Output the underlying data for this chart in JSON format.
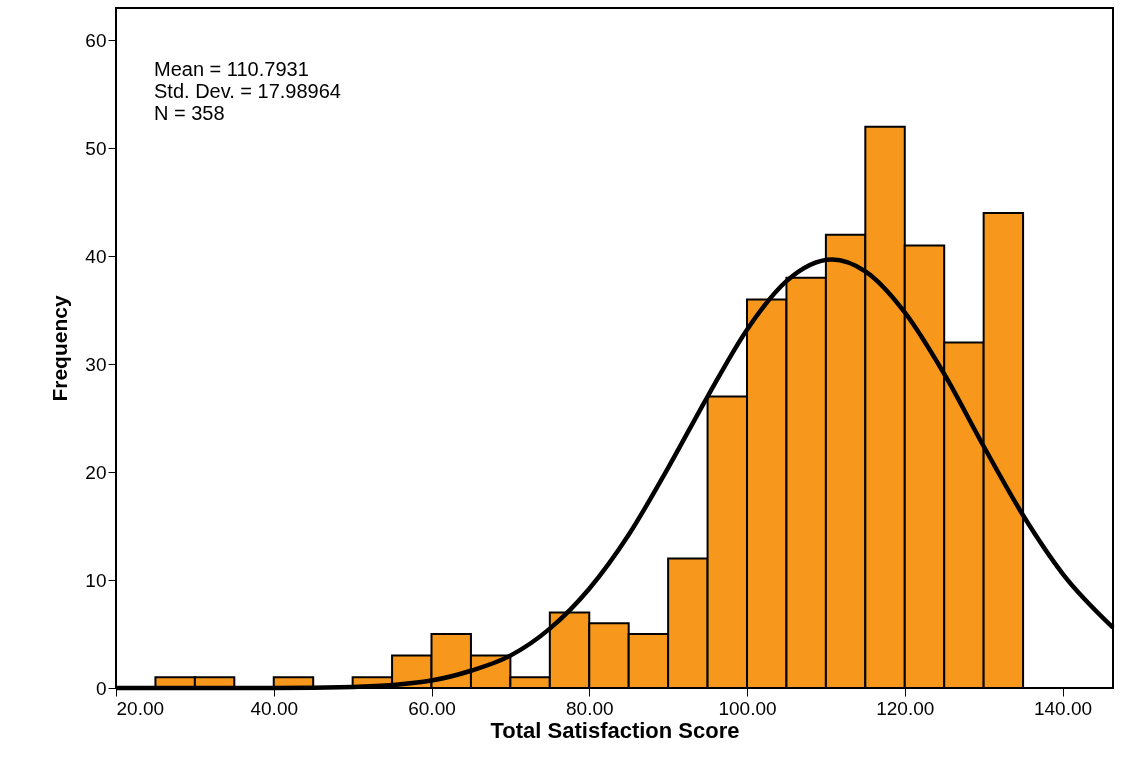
{
  "chart_data": {
    "type": "histogram",
    "xlabel": "Total Satisfaction Score",
    "ylabel": "Frequency",
    "bins": [
      25,
      30,
      35,
      40,
      45,
      50,
      55,
      60,
      65,
      70,
      75,
      80,
      85,
      90,
      95,
      100,
      105,
      110,
      115,
      120,
      125,
      130,
      135
    ],
    "values": [
      1,
      1,
      0,
      1,
      0,
      1,
      3,
      5,
      3,
      1,
      7,
      6,
      5,
      12,
      27,
      36,
      38,
      42,
      52,
      41,
      32,
      44
    ],
    "color": "#f7981d",
    "series": [
      {
        "type": "line",
        "color": "#000000",
        "x": [
          20,
          30,
          40,
          50,
          60,
          65,
          70,
          75,
          80,
          85,
          90,
          95,
          100,
          105,
          110.79,
          115,
          120,
          125,
          130,
          135,
          140,
          146.4
        ],
        "values": [
          0,
          0,
          0,
          0.1,
          0.7,
          1.6,
          3,
          5.5,
          9.2,
          14.2,
          20.4,
          27.0,
          33.2,
          37.7,
          39.7,
          38.6,
          34.8,
          29.1,
          22.4,
          16.0,
          10.6,
          5.6
        ]
      }
    ],
    "xlim": [
      20,
      146.4
    ],
    "xticks": [
      {
        "value": 20,
        "label": "20.00"
      },
      {
        "value": 40,
        "label": "40.00"
      },
      {
        "value": 60,
        "label": "60.00"
      },
      {
        "value": 80,
        "label": "80.00"
      },
      {
        "value": 100,
        "label": "100.00"
      },
      {
        "value": 120,
        "label": "120.00"
      },
      {
        "value": 140,
        "label": "140.00"
      }
    ],
    "ylim": [
      0,
      63
    ],
    "yticks": [
      0,
      10,
      20,
      30,
      40,
      50,
      60
    ],
    "grid": false,
    "annotations": [
      "Mean = 110.7931",
      "Std. Dev. = 17.98964",
      "N = 358"
    ]
  }
}
